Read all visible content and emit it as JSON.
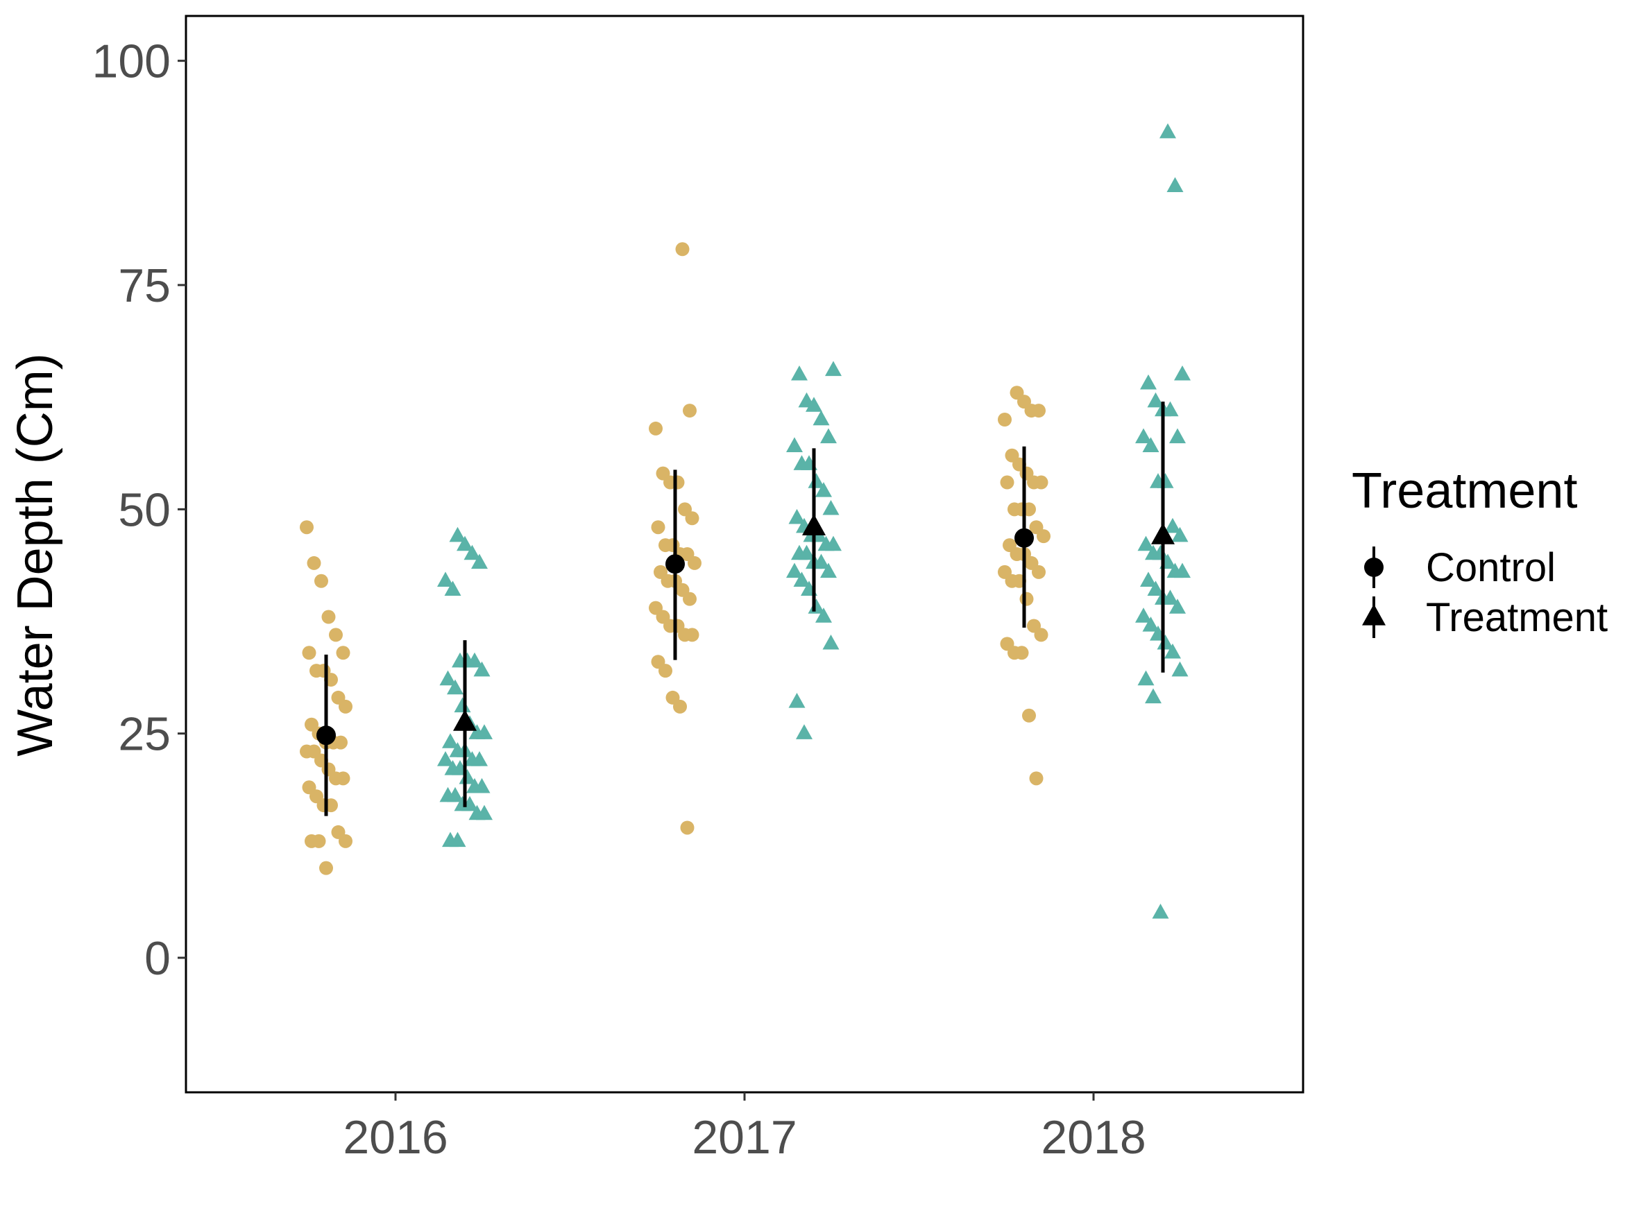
{
  "chart_data": {
    "type": "scatter",
    "title": "",
    "xlabel": "",
    "ylabel": "Water Depth (Cm)",
    "ylim": [
      -15,
      105
    ],
    "yticks": [
      "0",
      "25",
      "50",
      "75",
      "100"
    ],
    "categories": [
      "2016",
      "2017",
      "2018"
    ],
    "grid": false,
    "legend": {
      "title": "Treatment",
      "position": "right",
      "entries": [
        {
          "label": "Control",
          "shape": "circle"
        },
        {
          "label": "Treatment",
          "shape": "triangle"
        }
      ]
    },
    "colors": {
      "Control": "#d9b466",
      "Treatment": "#5ab3a8",
      "summary": "#000000"
    },
    "series": [
      {
        "name": "Control",
        "shape": "circle",
        "groups": [
          {
            "x": "2016",
            "mean": 24.8,
            "ci": [
              15.8,
              33.8
            ],
            "values": [
              48,
              44,
              42,
              38,
              36,
              34,
              34,
              32,
              32,
              31,
              29,
              28,
              26,
              25,
              24,
              24,
              24,
              23,
              23,
              22,
              21,
              20,
              20,
              19,
              18,
              17,
              17,
              14,
              13,
              13,
              13,
              10
            ]
          },
          {
            "x": "2017",
            "mean": 43.9,
            "ci": [
              33.2,
              54.4
            ],
            "values": [
              79,
              61,
              59,
              54,
              53,
              53,
              50,
              49,
              48,
              46,
              46,
              45,
              45,
              44,
              43,
              42,
              42,
              41,
              40,
              39,
              38,
              37,
              37,
              36,
              36,
              33,
              32,
              29,
              28,
              14.5
            ]
          },
          {
            "x": "2018",
            "mean": 46.8,
            "ci": [
              36.8,
              57
            ]
          }
        ]
      },
      {
        "name": "Treatment",
        "shape": "triangle",
        "groups": [
          {
            "x": "2016",
            "mean": 26.2,
            "ci": [
              16.8,
              35.4
            ],
            "values": [
              47,
              46,
              45,
              44,
              42,
              41,
              33,
              33,
              33,
              32,
              31,
              30,
              28,
              26,
              25,
              25,
              24,
              23,
              23,
              22,
              22,
              22,
              21,
              21,
              20,
              19,
              19,
              18,
              18,
              17,
              17,
              16,
              16,
              13,
              13
            ]
          },
          {
            "x": "2017",
            "mean": 48,
            "ci": [
              38.6,
              56.8
            ],
            "values": [
              65.5,
              65,
              62,
              61.5,
              60,
              58,
              57,
              55,
              55,
              53,
              52,
              50,
              49,
              48,
              47,
              47,
              46,
              46,
              45,
              45,
              44,
              44,
              43,
              43,
              42,
              41,
              39,
              38,
              35,
              28.5,
              25
            ]
          },
          {
            "x": "2018",
            "mean": 47,
            "ci": [
              31.8,
              62
            ],
            "values": [
              92,
              86,
              65,
              64,
              62,
              61,
              61,
              58,
              58,
              57,
              53,
              53,
              48,
              47,
              46,
              45,
              45,
              44,
              43,
              43,
              42,
              41,
              40,
              40,
              39,
              38,
              37,
              36,
              35,
              34,
              32,
              31,
              29,
              5
            ]
          }
        ]
      }
    ],
    "extra_control_2018": [
      63,
      62,
      61,
      61,
      60,
      56,
      55,
      54,
      53,
      53,
      53,
      50,
      50,
      50,
      48,
      47,
      46,
      45,
      45,
      44,
      43,
      43,
      42,
      42,
      40,
      37,
      36,
      35,
      34,
      34,
      27,
      20
    ]
  }
}
